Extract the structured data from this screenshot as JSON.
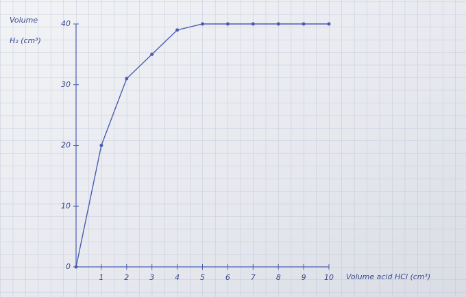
{
  "chart_data": {
    "type": "line",
    "y_label": [
      "Volume",
      "H₂ (cm³)"
    ],
    "x_label": "Volume acid HCl (cm³)",
    "x": [
      0,
      1,
      2,
      3,
      4,
      5,
      6,
      7,
      8,
      9,
      10
    ],
    "series": [
      {
        "color": "#4a5cb0",
        "values": [
          0,
          20,
          31,
          35,
          39,
          40,
          40,
          40,
          40,
          40,
          40
        ]
      }
    ],
    "xlim": [
      0,
      10
    ],
    "ylim": [
      0,
      40
    ],
    "xticks": [
      1,
      2,
      3,
      4,
      5,
      6,
      7,
      8,
      9,
      10
    ],
    "yticks": [
      0,
      10,
      20,
      30,
      40
    ]
  }
}
